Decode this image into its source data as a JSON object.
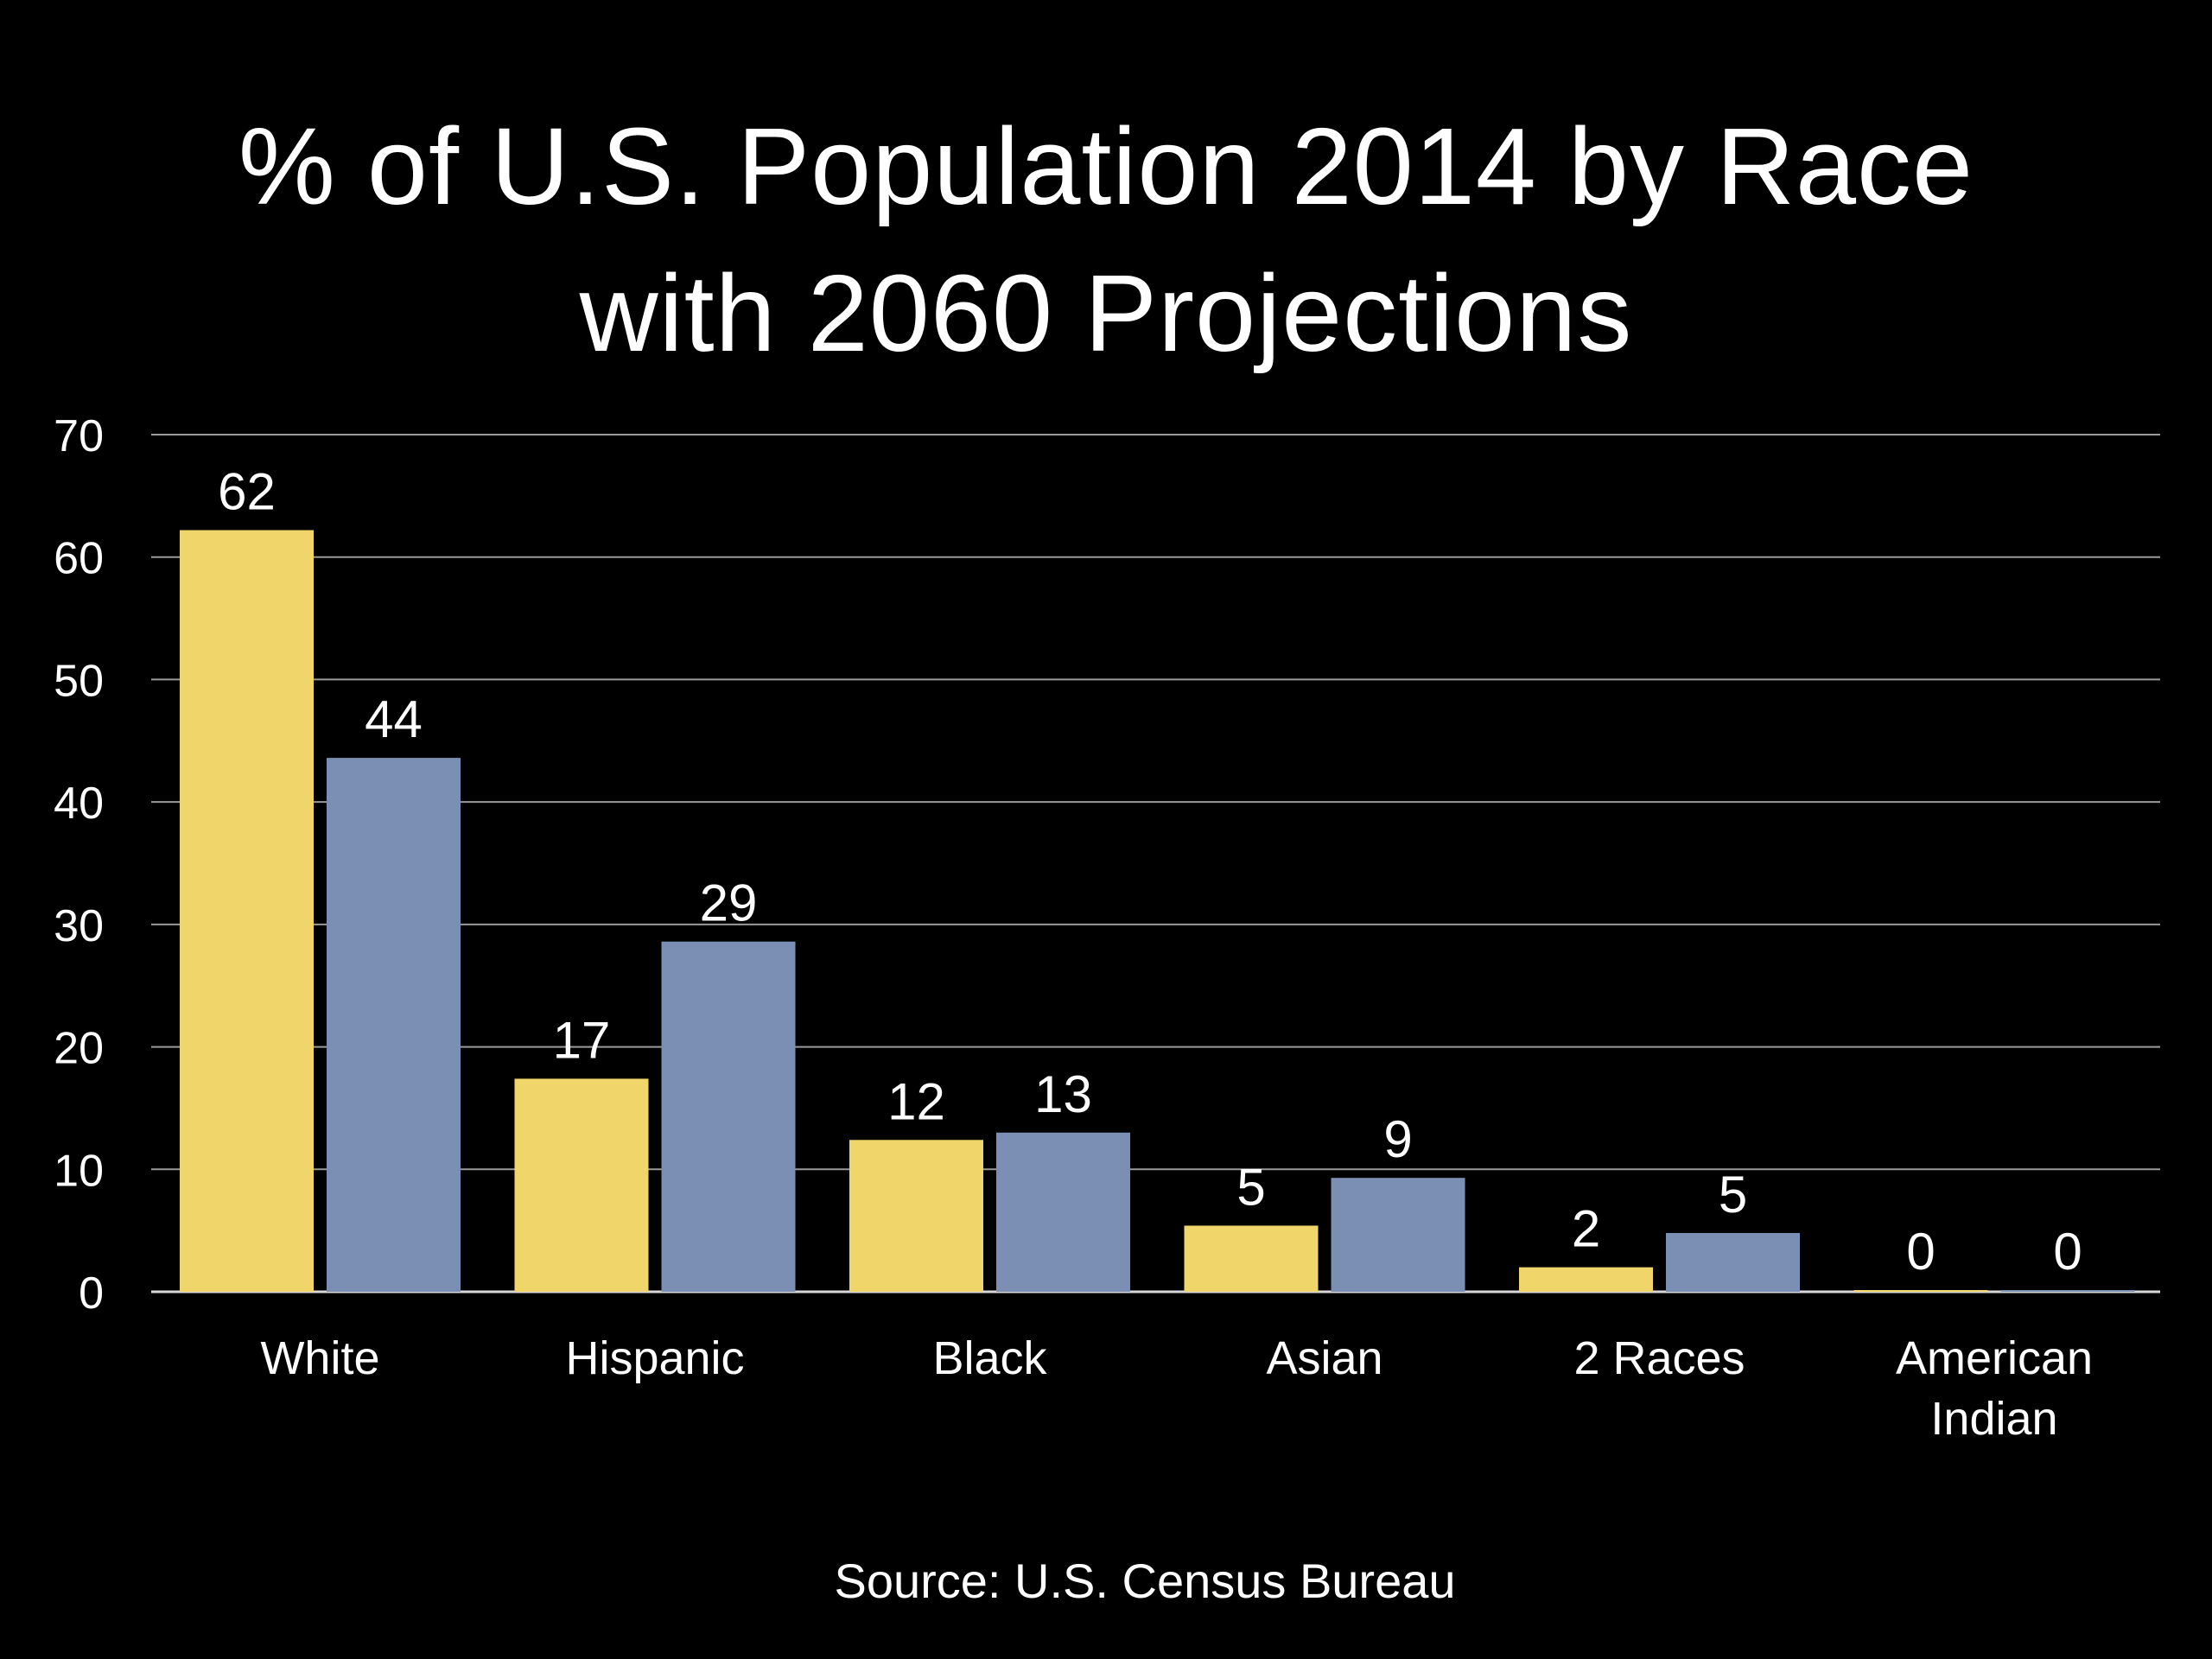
{
  "title_line1": "% of U.S. Population 2014 by Race",
  "title_line2": "with 2060 Projections",
  "source": "Source: U.S. Census Bureau",
  "chart_data": {
    "type": "bar",
    "title": "% of U.S. Population 2014 by Race with 2060 Projections",
    "categories": [
      "White",
      "Hispanic",
      "Black",
      "Asian",
      "2 Races",
      "American Indian"
    ],
    "category_lines": [
      [
        "White"
      ],
      [
        "Hispanic"
      ],
      [
        "Black"
      ],
      [
        "Asian"
      ],
      [
        "2 Races"
      ],
      [
        "American",
        "Indian"
      ]
    ],
    "series": [
      {
        "values": [
          62.2,
          17.4,
          12.4,
          5.4,
          2.0,
          0.0
        ],
        "labels": [
          "62",
          "17",
          "12",
          "5",
          "2",
          "0"
        ],
        "color": "#f0d56a"
      },
      {
        "values": [
          43.6,
          28.6,
          13.0,
          9.3,
          4.8,
          0.0
        ],
        "labels": [
          "44",
          "29",
          "13",
          "9",
          "5",
          "0"
        ],
        "color": "#7b8fb5"
      }
    ],
    "ylim": [
      0,
      70
    ],
    "yticks": [
      0,
      10,
      20,
      30,
      40,
      50,
      60,
      70
    ],
    "grid": true,
    "xlabel": "",
    "ylabel": ""
  }
}
